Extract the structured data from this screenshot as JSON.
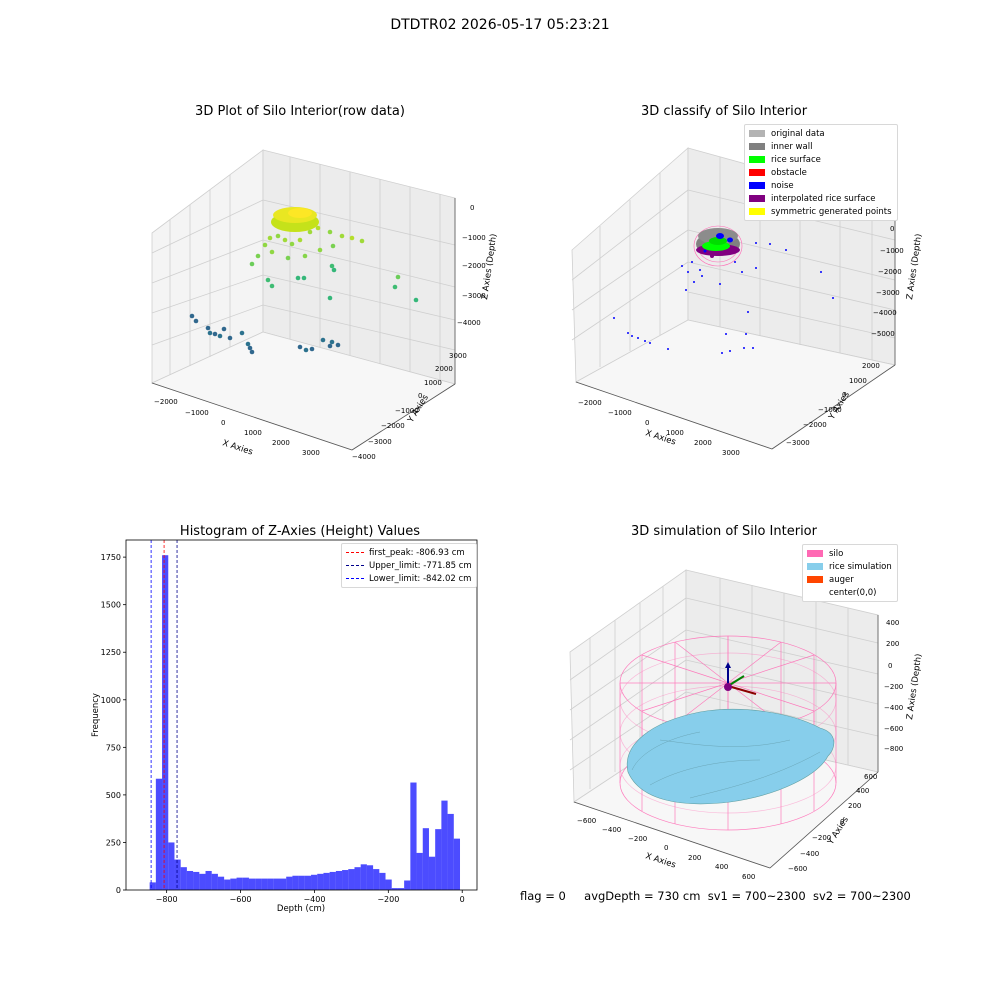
{
  "suptitle": "DTDTR02 2026-05-17 05:23:21",
  "footer": {
    "flag": "flag = 0",
    "avg_depth": "avgDepth = 730 cm",
    "sv1": "sv1 = 700~2300",
    "sv2": "sv2 = 700~2300"
  },
  "chart_data": [
    {
      "type": "scatter",
      "title": "3D Plot of Silo Interior(row data)",
      "xlabel": "X Axies",
      "ylabel": "Y Axies",
      "zlabel": "Z Axies (Depth)",
      "x_ticks": [
        "−2000",
        "−1000",
        "0",
        "1000",
        "2000",
        "3000"
      ],
      "y_ticks": [
        "−4000",
        "−3000",
        "−2000",
        "−1000",
        "0",
        "1000",
        "2000",
        "3000"
      ],
      "z_ticks": [
        "−4000",
        "−3000",
        "−2000",
        "−1000",
        "0"
      ],
      "grid": true,
      "colormap": [
        "#440154",
        "#31688e",
        "#35b779",
        "#fde725"
      ]
    },
    {
      "type": "scatter",
      "title": "3D classify of Silo Interior",
      "xlabel": "X Axies",
      "ylabel": "Y Axies",
      "zlabel": "Z Axies (Depth)",
      "x_ticks": [
        "−2000",
        "−1000",
        "0",
        "1000",
        "2000",
        "3000"
      ],
      "y_ticks": [
        "−3000",
        "−2000",
        "−1000",
        "0",
        "1000",
        "2000"
      ],
      "z_ticks": [
        "−5000",
        "−4000",
        "−3000",
        "−2000",
        "−1000",
        "0"
      ],
      "grid": true,
      "legend_position": "top-right",
      "legend": [
        {
          "label": "original data",
          "color": "#b3b3b3"
        },
        {
          "label": "inner wall",
          "color": "#808080"
        },
        {
          "label": "rice surface",
          "color": "#00ff00"
        },
        {
          "label": "obstacle",
          "color": "#ff0000"
        },
        {
          "label": "noise",
          "color": "#0000ff"
        },
        {
          "label": "interpolated rice surface",
          "color": "#800080"
        },
        {
          "label": "symmetric generated points",
          "color": "#ffff00"
        }
      ]
    },
    {
      "type": "bar",
      "title": "Histogram of Z-Axies (Height) Values",
      "xlabel": "Depth (cm)",
      "ylabel": "Frequency",
      "xlim": [
        -910,
        40
      ],
      "ylim": [
        0,
        1840
      ],
      "x_ticks": [
        -800,
        -600,
        -400,
        -200,
        0
      ],
      "y_ticks": [
        0,
        250,
        500,
        750,
        1000,
        1250,
        1500,
        1750
      ],
      "bar_color": "#0000ff",
      "bin_width": 16.8,
      "bin_start": -846,
      "values": [
        40,
        585,
        1760,
        250,
        160,
        120,
        100,
        95,
        85,
        100,
        85,
        70,
        55,
        60,
        65,
        65,
        60,
        60,
        60,
        60,
        60,
        60,
        70,
        75,
        75,
        75,
        80,
        85,
        90,
        95,
        100,
        105,
        110,
        120,
        135,
        130,
        110,
        90,
        55,
        10,
        10,
        50,
        565,
        195,
        325,
        175,
        320,
        470,
        400,
        270
      ],
      "legend_position": "top-right",
      "lines": [
        {
          "label": "first_peak: -806.93 cm",
          "x": -806.93,
          "color": "#ff0000"
        },
        {
          "label": "Upper_limit: -771.85 cm",
          "x": -771.85,
          "color": "#00008b"
        },
        {
          "label": "Lower_limit: -842.02 cm",
          "x": -842.02,
          "color": "#0000ff"
        }
      ]
    },
    {
      "type": "surface",
      "title": "3D simulation of Silo Interior",
      "xlabel": "X Axies",
      "ylabel": "Y Axies",
      "zlabel": "Z Axies (Depth)",
      "x_ticks": [
        "−600",
        "−400",
        "−200",
        "0",
        "200",
        "400",
        "600"
      ],
      "y_ticks": [
        "−600",
        "−400",
        "−200",
        "0",
        "200",
        "400",
        "600"
      ],
      "z_ticks": [
        "−800",
        "−600",
        "−400",
        "−200",
        "0",
        "200",
        "400"
      ],
      "grid": true,
      "legend_position": "top-right",
      "legend": [
        {
          "label": "silo",
          "color": "#ff69b4"
        },
        {
          "label": "rice simulation",
          "color": "#87ceeb"
        },
        {
          "label": "auger",
          "color": "#ff4500"
        },
        {
          "label": "center(0,0)",
          "color": "#ffffff"
        }
      ]
    }
  ]
}
